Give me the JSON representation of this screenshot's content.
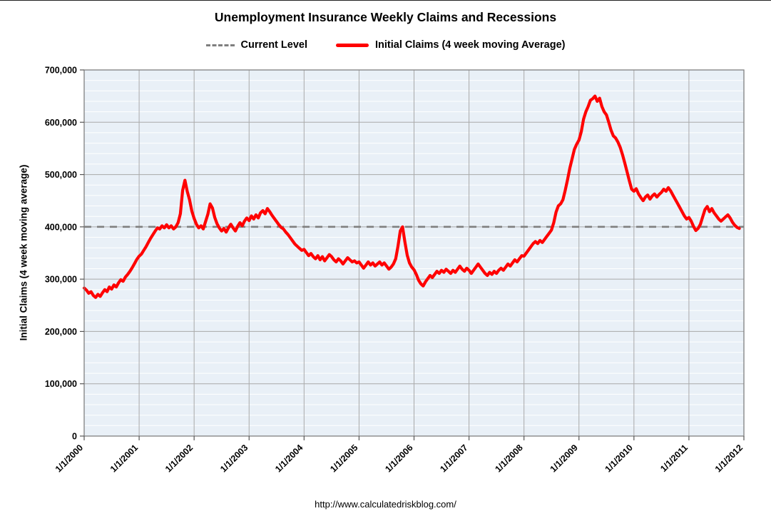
{
  "chart_data": {
    "type": "line",
    "title": "Unemployment Insurance Weekly Claims and Recessions",
    "ylabel": "Initial Claims (4 week moving average)",
    "xlabel": "",
    "source_url": "http://www.calculatedriskblog.com/",
    "legend_position": "top",
    "grid": true,
    "legend": [
      {
        "label": "Current Level",
        "style": "dashed",
        "color": "#7f7f7f"
      },
      {
        "label": "Initial Claims (4 week moving Average)",
        "style": "solid",
        "color": "#ff0000"
      }
    ],
    "x_ticks": [
      "1/1/2000",
      "1/1/2001",
      "1/1/2002",
      "1/1/2003",
      "1/1/2004",
      "1/1/2005",
      "1/1/2006",
      "1/1/2007",
      "1/1/2008",
      "1/1/2009",
      "1/1/2010",
      "1/1/2011",
      "1/1/2012"
    ],
    "x_range": [
      2000,
      2012
    ],
    "ylim": [
      0,
      700000
    ],
    "y_ticks": [
      0,
      100000,
      200000,
      300000,
      400000,
      500000,
      600000,
      700000
    ],
    "y_minor_step": 20000,
    "current_level": 400000,
    "colors": {
      "series": "#ff0000",
      "current_level_line": "#7f7f7f",
      "plot_bg": "#e9f0f7",
      "minor_grid": "#ffffff",
      "major_grid": "#a9a9a9",
      "axis": "#808080",
      "tick": "#555555"
    },
    "series": [
      {
        "name": "Initial Claims (4 week moving Average)",
        "color": "#ff0000",
        "x_start": 2000,
        "samples_per_year": 24,
        "values": [
          283000,
          279000,
          273000,
          276000,
          269000,
          265000,
          271000,
          267000,
          274000,
          280000,
          276000,
          285000,
          281000,
          289000,
          285000,
          293000,
          299000,
          296000,
          304000,
          309000,
          315000,
          322000,
          330000,
          338000,
          344000,
          348000,
          355000,
          362000,
          370000,
          378000,
          385000,
          392000,
          398000,
          396000,
          402000,
          398000,
          404000,
          398000,
          402000,
          396000,
          400000,
          408000,
          425000,
          470000,
          489000,
          468000,
          452000,
          430000,
          416000,
          405000,
          398000,
          402000,
          396000,
          410000,
          424000,
          444000,
          436000,
          418000,
          406000,
          398000,
          392000,
          397000,
          390000,
          398000,
          405000,
          398000,
          392000,
          401000,
          408000,
          402000,
          411000,
          417000,
          412000,
          421000,
          415000,
          423000,
          417000,
          427000,
          431000,
          425000,
          435000,
          429000,
          422000,
          416000,
          410000,
          404000,
          399000,
          396000,
          390000,
          385000,
          379000,
          373000,
          367000,
          363000,
          359000,
          355000,
          357000,
          351000,
          345000,
          349000,
          343000,
          339000,
          345000,
          337000,
          343000,
          335000,
          341000,
          347000,
          343000,
          337000,
          333000,
          339000,
          335000,
          329000,
          335000,
          341000,
          337000,
          333000,
          335000,
          331000,
          333000,
          327000,
          321000,
          327000,
          333000,
          327000,
          331000,
          325000,
          329000,
          333000,
          327000,
          331000,
          325000,
          319000,
          323000,
          329000,
          339000,
          363000,
          392000,
          400000,
          371000,
          346000,
          331000,
          323000,
          318000,
          309000,
          298000,
          291000,
          287000,
          295000,
          301000,
          307000,
          303000,
          309000,
          315000,
          311000,
          317000,
          313000,
          319000,
          315000,
          311000,
          317000,
          313000,
          319000,
          325000,
          319000,
          315000,
          321000,
          317000,
          311000,
          317000,
          323000,
          329000,
          323000,
          317000,
          311000,
          307000,
          313000,
          309000,
          315000,
          311000,
          317000,
          321000,
          317000,
          323000,
          329000,
          325000,
          331000,
          337000,
          333000,
          339000,
          345000,
          344000,
          350000,
          356000,
          362000,
          368000,
          372000,
          368000,
          374000,
          370000,
          376000,
          382000,
          388000,
          394000,
          408000,
          428000,
          440000,
          444000,
          452000,
          470000,
          490000,
          512000,
          530000,
          548000,
          558000,
          566000,
          582000,
          606000,
          620000,
          630000,
          642000,
          645000,
          650000,
          640000,
          646000,
          630000,
          620000,
          614000,
          600000,
          585000,
          574000,
          570000,
          562000,
          552000,
          538000,
          522000,
          505000,
          488000,
          472000,
          468000,
          473000,
          463000,
          456000,
          450000,
          457000,
          461000,
          453000,
          459000,
          463000,
          457000,
          462000,
          466000,
          472000,
          468000,
          475000,
          469000,
          461000,
          453000,
          445000,
          437000,
          429000,
          421000,
          415000,
          418000,
          411000,
          401000,
          393000,
          397000,
          405000,
          419000,
          433000,
          439000,
          429000,
          435000,
          427000,
          421000,
          415000,
          411000,
          415000,
          419000,
          423000,
          417000,
          409000,
          403000,
          399000,
          397000
        ]
      }
    ]
  }
}
